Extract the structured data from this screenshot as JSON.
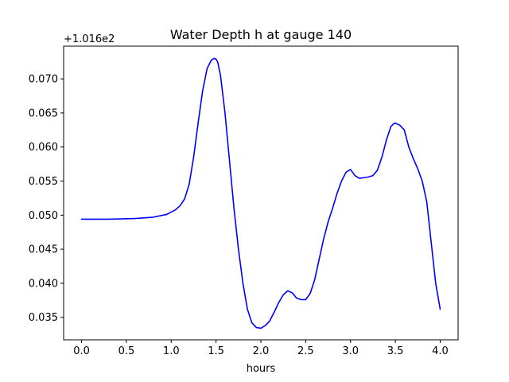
{
  "chart_data": {
    "type": "line",
    "title": "Water Depth h at gauge 140",
    "xlabel": "hours",
    "ylabel": "",
    "y_offset_label": "+1.016e2",
    "xlim": [
      -0.2,
      4.2
    ],
    "ylim": [
      0.0317,
      0.0748
    ],
    "xticks": [
      0.0,
      0.5,
      1.0,
      1.5,
      2.0,
      2.5,
      3.0,
      3.5,
      4.0
    ],
    "xtick_labels": [
      "0.0",
      "0.5",
      "1.0",
      "1.5",
      "2.0",
      "2.5",
      "3.0",
      "3.5",
      "4.0"
    ],
    "yticks": [
      0.035,
      0.04,
      0.045,
      0.05,
      0.055,
      0.06,
      0.065,
      0.07
    ],
    "ytick_labels": [
      "0.035",
      "0.040",
      "0.045",
      "0.050",
      "0.055",
      "0.060",
      "0.065",
      "0.070"
    ],
    "grid": false,
    "series": [
      {
        "color": "#0000ff",
        "x": [
          0.0,
          0.3,
          0.6,
          0.8,
          0.95,
          1.05,
          1.1,
          1.15,
          1.2,
          1.25,
          1.3,
          1.35,
          1.4,
          1.45,
          1.48,
          1.5,
          1.52,
          1.55,
          1.6,
          1.65,
          1.7,
          1.75,
          1.8,
          1.85,
          1.9,
          1.95,
          2.0,
          2.05,
          2.1,
          2.15,
          2.2,
          2.25,
          2.3,
          2.35,
          2.4,
          2.45,
          2.5,
          2.55,
          2.6,
          2.65,
          2.7,
          2.75,
          2.8,
          2.85,
          2.9,
          2.95,
          3.0,
          3.05,
          3.1,
          3.15,
          3.2,
          3.25,
          3.3,
          3.35,
          3.4,
          3.45,
          3.48,
          3.5,
          3.55,
          3.6,
          3.65,
          3.7,
          3.75,
          3.8,
          3.85,
          3.9,
          3.95,
          4.0
        ],
        "y": [
          0.0494,
          0.0494,
          0.0495,
          0.0497,
          0.0501,
          0.0508,
          0.0514,
          0.0524,
          0.0545,
          0.0585,
          0.0635,
          0.0682,
          0.0715,
          0.0728,
          0.073,
          0.0729,
          0.0724,
          0.0705,
          0.065,
          0.058,
          0.051,
          0.045,
          0.04,
          0.0362,
          0.0342,
          0.0335,
          0.0334,
          0.0338,
          0.0345,
          0.0358,
          0.0372,
          0.0383,
          0.0389,
          0.0386,
          0.0378,
          0.0376,
          0.0376,
          0.0385,
          0.0405,
          0.0435,
          0.0465,
          0.049,
          0.051,
          0.0532,
          0.055,
          0.0563,
          0.0567,
          0.0558,
          0.0554,
          0.0555,
          0.0556,
          0.0558,
          0.0566,
          0.0585,
          0.061,
          0.063,
          0.0634,
          0.0635,
          0.0632,
          0.0625,
          0.06,
          0.0583,
          0.0568,
          0.055,
          0.052,
          0.046,
          0.04,
          0.0362
        ]
      }
    ]
  }
}
